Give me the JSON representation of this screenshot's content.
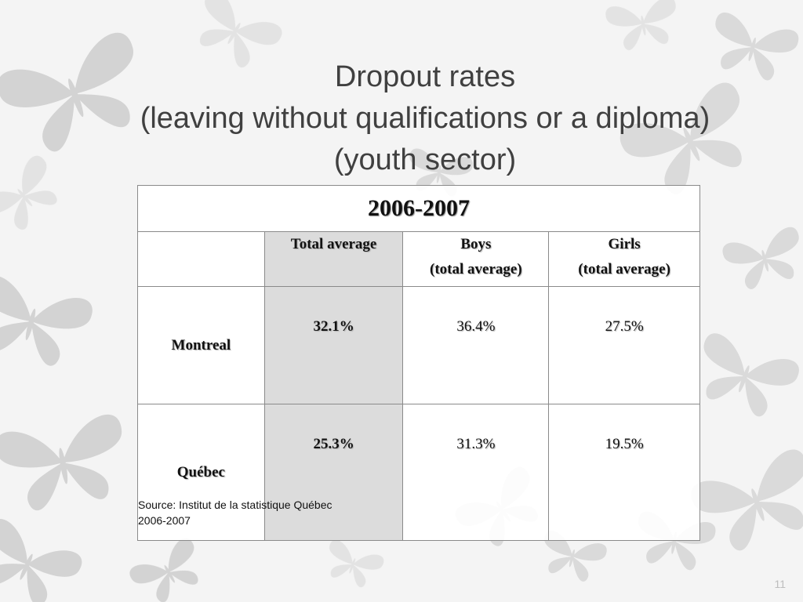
{
  "slide": {
    "title_lines": [
      "Dropout rates",
      "(leaving without qualifications or  a diploma)",
      "(youth sector)"
    ],
    "page_number": "11"
  },
  "table": {
    "year": "2006-2007",
    "columns": [
      {
        "line1": "Total average",
        "line2": ""
      },
      {
        "line1": "Boys",
        "line2": "(total average)"
      },
      {
        "line1": "Girls",
        "line2": "(total average)"
      }
    ],
    "rows": [
      {
        "label": "Montreal",
        "total": "32.1%",
        "boys": "36.4%",
        "girls": "27.5%"
      },
      {
        "label": "Québec",
        "total": "25.3%",
        "boys": "31.3%",
        "girls": "19.5%"
      }
    ]
  },
  "source": {
    "line1": "Source: Institut de la statistique Québec",
    "line2": "2006-2007"
  }
}
